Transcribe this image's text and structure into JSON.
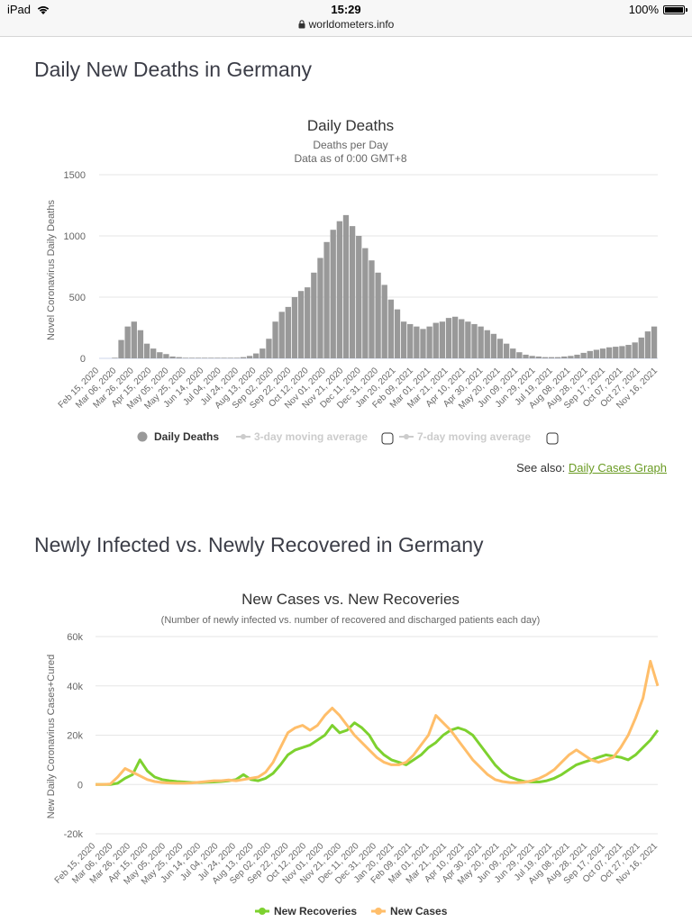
{
  "status_bar": {
    "device": "iPad",
    "time": "15:29",
    "battery": "100%",
    "url": "worldometers.info"
  },
  "section1": {
    "title": "Daily New Deaths in Germany"
  },
  "chart1": {
    "title": "Daily Deaths",
    "subtitle1": "Deaths per Day",
    "subtitle2": "Data as of 0:00 GMT+8",
    "ylabel": "Novel Coronavirus Daily Deaths",
    "yticks": [
      "1500",
      "1000",
      "500",
      "0"
    ],
    "legend": {
      "deaths": "Daily Deaths",
      "ma3": "3-day moving average",
      "ma7": "7-day moving average"
    }
  },
  "see_also": {
    "label": "See also:",
    "link": "Daily Cases Graph"
  },
  "section2": {
    "title": "Newly Infected vs. Newly Recovered in Germany"
  },
  "chart2": {
    "title": "New Cases vs. New Recoveries",
    "subtitle": "(Number of newly infected vs. number of recovered and discharged patients each day)",
    "ylabel": "New Daily Coronavirus Cases+Cured",
    "yticks": [
      "60k",
      "40k",
      "20k",
      "0",
      "-20k"
    ],
    "legend": {
      "recoveries": "New Recoveries",
      "cases": "New Cases"
    }
  },
  "colors": {
    "deaths": "#999999",
    "recoveries": "#7dd12f",
    "cases": "#ffbe6a",
    "link": "#6a9b23"
  },
  "chart_data": [
    {
      "type": "bar",
      "title": "Daily Deaths",
      "ylabel": "Novel Coronavirus Daily Deaths",
      "ylim": [
        0,
        1500
      ],
      "x_tick_labels": [
        "Feb 15, 2020",
        "Mar 06, 2020",
        "Mar 26, 2020",
        "Apr 15, 2020",
        "May 05, 2020",
        "May 25, 2020",
        "Jun 14, 2020",
        "Jul 04, 2020",
        "Jul 24, 2020",
        "Aug 13, 2020",
        "Sep 02, 2020",
        "Sep 22, 2020",
        "Oct 12, 2020",
        "Nov 01, 2020",
        "Nov 21, 2020",
        "Dec 11, 2020",
        "Dec 31, 2020",
        "Jan 20, 2021",
        "Feb 09, 2021",
        "Mar 01, 2021",
        "Mar 21, 2021",
        "Apr 10, 2021",
        "Apr 30, 2021",
        "May 20, 2021",
        "Jun 09, 2021",
        "Jun 29, 2021",
        "Jul 19, 2021",
        "Aug 08, 2021",
        "Aug 28, 2021",
        "Sep 17, 2021",
        "Oct 07, 2021",
        "Oct 27, 2021",
        "Nov 16, 2021"
      ],
      "series": [
        {
          "name": "Daily Deaths",
          "values": [
            0,
            0,
            5,
            150,
            260,
            300,
            230,
            120,
            80,
            50,
            35,
            15,
            10,
            5,
            5,
            5,
            5,
            5,
            5,
            5,
            5,
            5,
            10,
            20,
            40,
            80,
            160,
            300,
            380,
            420,
            500,
            550,
            580,
            700,
            820,
            950,
            1050,
            1120,
            1170,
            1080,
            1000,
            900,
            800,
            700,
            600,
            480,
            400,
            300,
            280,
            260,
            240,
            260,
            290,
            300,
            330,
            340,
            320,
            300,
            280,
            260,
            230,
            200,
            160,
            120,
            80,
            50,
            30,
            20,
            15,
            10,
            10,
            10,
            15,
            20,
            30,
            45,
            60,
            70,
            80,
            90,
            95,
            100,
            110,
            130,
            170,
            220,
            260
          ]
        }
      ]
    },
    {
      "type": "line",
      "title": "New Cases vs. New Recoveries",
      "ylabel": "New Daily Coronavirus Cases+Cured",
      "ylim": [
        -20000,
        60000
      ],
      "x_tick_labels": [
        "Feb 15, 2020",
        "Mar 06, 2020",
        "Mar 26, 2020",
        "Apr 15, 2020",
        "May 05, 2020",
        "May 25, 2020",
        "Jun 14, 2020",
        "Jul 04, 2020",
        "Jul 24, 2020",
        "Aug 13, 2020",
        "Sep 02, 2020",
        "Sep 22, 2020",
        "Oct 12, 2020",
        "Nov 01, 2020",
        "Nov 21, 2020",
        "Dec 11, 2020",
        "Dec 31, 2020",
        "Jan 20, 2021",
        "Feb 09, 2021",
        "Mar 01, 2021",
        "Mar 21, 2021",
        "Apr 10, 2021",
        "Apr 30, 2021",
        "May 20, 2021",
        "Jun 09, 2021",
        "Jun 29, 2021",
        "Jul 19, 2021",
        "Aug 08, 2021",
        "Aug 28, 2021",
        "Sep 17, 2021",
        "Oct 07, 2021",
        "Oct 27, 2021",
        "Nov 16, 2021"
      ],
      "series": [
        {
          "name": "New Recoveries",
          "values": [
            0,
            0,
            0,
            500,
            2500,
            4000,
            10000,
            5500,
            3000,
            2000,
            1500,
            1200,
            1000,
            800,
            800,
            900,
            1000,
            1200,
            1500,
            2000,
            4000,
            2000,
            1500,
            2500,
            4500,
            8000,
            12000,
            14000,
            15000,
            16000,
            18000,
            20000,
            24000,
            21000,
            22000,
            25000,
            23000,
            20000,
            15000,
            12000,
            10000,
            9000,
            8000,
            10000,
            12000,
            15000,
            17000,
            20000,
            22000,
            23000,
            22000,
            20000,
            16000,
            12000,
            8000,
            5000,
            3000,
            2000,
            1200,
            1000,
            1000,
            1500,
            2500,
            4000,
            6000,
            8000,
            9000,
            10000,
            11000,
            12000,
            11500,
            11000,
            10000,
            12000,
            15000,
            18000,
            22000
          ]
        },
        {
          "name": "New Cases",
          "values": [
            0,
            0,
            200,
            3000,
            6500,
            5000,
            3500,
            2000,
            1200,
            800,
            600,
            500,
            500,
            600,
            900,
            1200,
            1500,
            1500,
            1800,
            1500,
            2000,
            2500,
            3000,
            5000,
            9000,
            15000,
            21000,
            23000,
            24000,
            22000,
            24000,
            28000,
            31000,
            28000,
            24000,
            20000,
            17000,
            14000,
            11000,
            9000,
            8000,
            8000,
            9000,
            12000,
            16000,
            20000,
            28000,
            25000,
            22000,
            18000,
            14000,
            10000,
            7000,
            4000,
            2000,
            1200,
            800,
            700,
            900,
            1500,
            2500,
            4000,
            6000,
            9000,
            12000,
            14000,
            12000,
            10000,
            9000,
            10000,
            11000,
            15000,
            20000,
            27000,
            35000,
            50000,
            40000
          ]
        }
      ]
    }
  ]
}
